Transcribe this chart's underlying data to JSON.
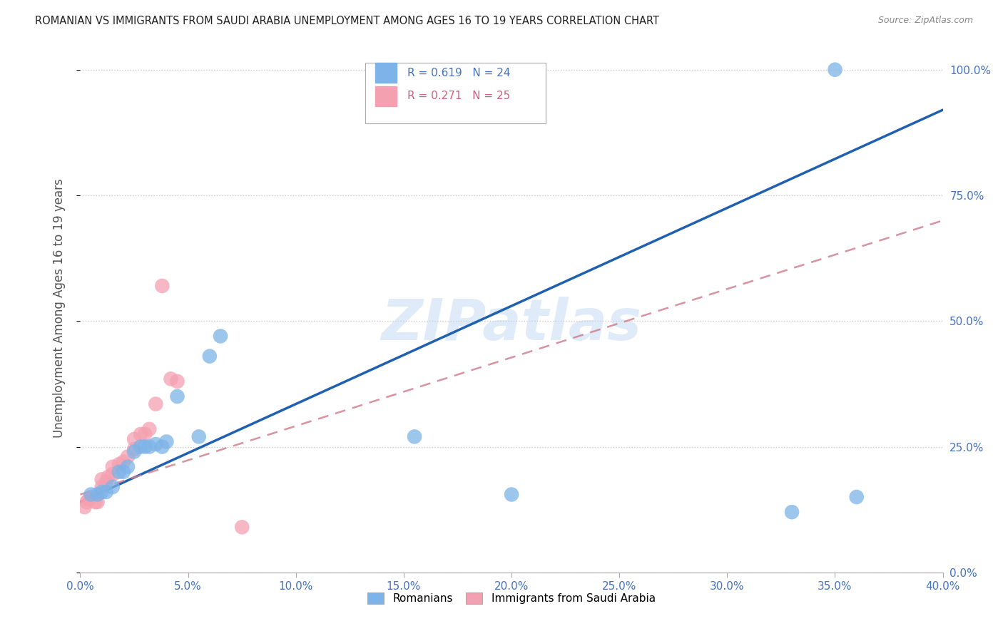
{
  "title": "ROMANIAN VS IMMIGRANTS FROM SAUDI ARABIA UNEMPLOYMENT AMONG AGES 16 TO 19 YEARS CORRELATION CHART",
  "source": "Source: ZipAtlas.com",
  "ylabel": "Unemployment Among Ages 16 to 19 years",
  "legend_label1": "Romanians",
  "legend_label2": "Immigrants from Saudi Arabia",
  "r1": 0.619,
  "n1": 24,
  "r2": 0.271,
  "n2": 25,
  "blue_color": "#7db3e8",
  "pink_color": "#f4a0b0",
  "blue_line_color": "#2060b0",
  "pink_line_color": "#d08090",
  "watermark": "ZIPatlas",
  "blue_x": [
    0.005,
    0.008,
    0.01,
    0.012,
    0.015,
    0.018,
    0.02,
    0.022,
    0.025,
    0.028,
    0.03,
    0.032,
    0.035,
    0.038,
    0.04,
    0.045,
    0.055,
    0.06,
    0.065,
    0.155,
    0.2,
    0.33,
    0.36,
    0.35
  ],
  "blue_y": [
    0.155,
    0.155,
    0.16,
    0.16,
    0.17,
    0.2,
    0.2,
    0.21,
    0.24,
    0.25,
    0.25,
    0.25,
    0.255,
    0.25,
    0.26,
    0.35,
    0.27,
    0.43,
    0.47,
    0.27,
    0.155,
    0.12,
    0.15,
    1.0
  ],
  "pink_x": [
    0.002,
    0.003,
    0.004,
    0.005,
    0.007,
    0.008,
    0.01,
    0.01,
    0.012,
    0.013,
    0.015,
    0.015,
    0.018,
    0.02,
    0.022,
    0.025,
    0.025,
    0.028,
    0.03,
    0.032,
    0.035,
    0.038,
    0.042,
    0.045,
    0.075
  ],
  "pink_y": [
    0.13,
    0.14,
    0.145,
    0.15,
    0.14,
    0.14,
    0.17,
    0.185,
    0.18,
    0.19,
    0.195,
    0.21,
    0.215,
    0.22,
    0.23,
    0.245,
    0.265,
    0.275,
    0.275,
    0.285,
    0.335,
    0.57,
    0.385,
    0.38,
    0.09
  ],
  "xmin": 0.0,
  "xmax": 0.4,
  "ymin": 0.0,
  "ymax": 1.05,
  "blue_trend_x0": 0.0,
  "blue_trend_y0": 0.14,
  "blue_trend_x1": 0.4,
  "blue_trend_y1": 0.92,
  "pink_trend_x0": 0.0,
  "pink_trend_y0": 0.155,
  "pink_trend_x1": 0.4,
  "pink_trend_y1": 0.7,
  "y_ticks": [
    0.0,
    0.25,
    0.5,
    0.75,
    1.0
  ],
  "y_tick_labels": [
    "0.0%",
    "25.0%",
    "50.0%",
    "75.0%",
    "100.0%"
  ],
  "x_ticks": [
    0.0,
    0.05,
    0.1,
    0.15,
    0.2,
    0.25,
    0.3,
    0.35,
    0.4
  ],
  "x_tick_labels": [
    "0.0%",
    "5.0%",
    "10.0%",
    "15.0%",
    "20.0%",
    "25.0%",
    "30.0%",
    "35.0%",
    "40.0%"
  ]
}
